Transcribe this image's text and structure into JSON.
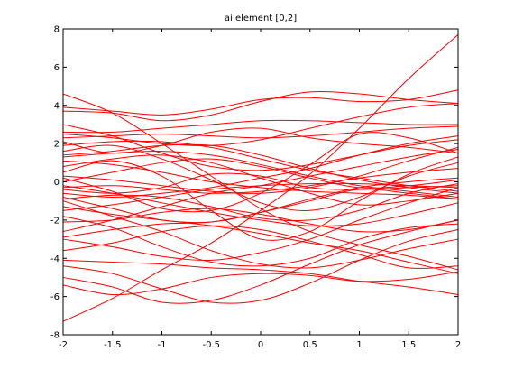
{
  "chart_data": {
    "type": "line",
    "title": "ai element [0,2]",
    "xlabel": "",
    "ylabel": "",
    "xlim": [
      -2,
      2
    ],
    "ylim": [
      -8,
      8
    ],
    "x_ticks": [
      -2,
      -1.5,
      -1,
      -0.5,
      0,
      0.5,
      1,
      1.5,
      2
    ],
    "x_tick_labels": [
      "-2",
      "-1.5",
      "-1",
      "-0.5",
      "0",
      "0.5",
      "1",
      "1.5",
      "2"
    ],
    "y_ticks": [
      -8,
      -6,
      -4,
      -2,
      0,
      2,
      4,
      6,
      8
    ],
    "y_tick_labels": [
      "-8",
      "-6",
      "-4",
      "-2",
      "0",
      "2",
      "4",
      "6",
      "8"
    ],
    "grid": false,
    "line_color": "#ff0000",
    "x": [
      -2,
      -1.5,
      -1,
      -0.5,
      0,
      0.5,
      1,
      1.5,
      2
    ],
    "series": [
      {
        "values": [
          -7.3,
          -6.1,
          -4.6,
          -3.2,
          -1.5,
          0.4,
          2.8,
          5.4,
          7.7
        ]
      },
      {
        "values": [
          4.6,
          3.6,
          2.0,
          0.3,
          -1.4,
          -2.6,
          -3.3,
          -3.9,
          -4.6
        ]
      },
      {
        "values": [
          3.9,
          3.7,
          3.5,
          3.8,
          4.3,
          4.4,
          4.2,
          4.3,
          4.8
        ]
      },
      {
        "values": [
          3.7,
          3.6,
          3.2,
          3.5,
          4.2,
          4.7,
          4.6,
          4.3,
          4.1
        ]
      },
      {
        "values": [
          2.6,
          2.6,
          2.8,
          3.0,
          3.2,
          3.2,
          3.1,
          3.0,
          3.0
        ]
      },
      {
        "values": [
          2.3,
          2.4,
          2.5,
          2.4,
          2.3,
          2.4,
          2.6,
          2.8,
          2.9
        ]
      },
      {
        "values": [
          2.1,
          1.5,
          1.9,
          2.6,
          2.8,
          2.3,
          2.0,
          1.8,
          1.5
        ]
      },
      {
        "values": [
          1.9,
          2.1,
          2.1,
          1.8,
          1.2,
          0.6,
          0.2,
          -0.2,
          -0.5
        ]
      },
      {
        "values": [
          1.4,
          1.6,
          1.9,
          1.9,
          1.4,
          0.7,
          0.1,
          -0.3,
          -0.6
        ]
      },
      {
        "values": [
          1.3,
          1.5,
          1.6,
          1.4,
          0.9,
          0.3,
          -0.2,
          -0.5,
          -0.8
        ]
      },
      {
        "values": [
          1.1,
          0.9,
          0.5,
          0.0,
          -0.3,
          -0.5,
          -0.6,
          -0.7,
          -0.9
        ]
      },
      {
        "values": [
          0.8,
          1.2,
          1.4,
          1.0,
          0.2,
          -0.6,
          -1.2,
          -1.0,
          -0.6
        ]
      },
      {
        "values": [
          0.5,
          1.1,
          0.3,
          -1.5,
          -3.0,
          -2.6,
          -1.0,
          0.4,
          1.3
        ]
      },
      {
        "values": [
          0.2,
          -0.5,
          -1.4,
          -1.5,
          -0.6,
          0.9,
          2.5,
          2.3,
          1.5
        ]
      },
      {
        "values": [
          0.0,
          0.5,
          1.0,
          1.2,
          0.8,
          0.2,
          -0.3,
          -0.2,
          0.1
        ]
      },
      {
        "values": [
          -0.2,
          -0.6,
          -1.1,
          -1.6,
          -2.0,
          -2.3,
          -2.2,
          -1.7,
          -1.1
        ]
      },
      {
        "values": [
          -0.3,
          -0.2,
          -0.4,
          -0.6,
          -0.5,
          -0.2,
          0.2,
          0.5,
          0.7
        ]
      },
      {
        "values": [
          -0.4,
          -0.6,
          -0.3,
          0.4,
          0.3,
          -0.3,
          -0.4,
          -0.3,
          -0.2
        ]
      },
      {
        "values": [
          -0.6,
          -0.8,
          -0.6,
          -0.3,
          0.2,
          0.7,
          1.4,
          2.0,
          2.4
        ]
      },
      {
        "values": [
          -0.8,
          -1.4,
          -2.0,
          -2.1,
          -1.6,
          -0.9,
          -0.3,
          0.0,
          0.2
        ]
      },
      {
        "values": [
          -1.0,
          -1.8,
          -2.6,
          -3.6,
          -4.3,
          -4.5,
          -4.1,
          -3.5,
          -3.0
        ]
      },
      {
        "values": [
          -1.3,
          -1.7,
          -2.0,
          -2.3,
          -2.7,
          -3.2,
          -3.6,
          -4.2,
          -4.8
        ]
      },
      {
        "values": [
          -1.5,
          -1.2,
          -0.8,
          -0.4,
          -0.2,
          -0.1,
          -0.1,
          -0.2,
          -0.3
        ]
      },
      {
        "values": [
          -1.8,
          -2.4,
          -3.4,
          -4.2,
          -4.4,
          -4.0,
          -3.0,
          -2.4,
          -2.2
        ]
      },
      {
        "values": [
          -2.1,
          -2.0,
          -1.6,
          -1.4,
          -1.7,
          -2.2,
          -2.6,
          -2.5,
          -2.0
        ]
      },
      {
        "values": [
          -2.6,
          -2.0,
          -1.3,
          -0.6,
          -0.2,
          0.3,
          0.8,
          1.3,
          1.7
        ]
      },
      {
        "values": [
          -3.0,
          -3.4,
          -3.9,
          -4.1,
          -3.7,
          -3.0,
          -2.0,
          -1.1,
          -0.3
        ]
      },
      {
        "values": [
          -3.6,
          -3.2,
          -2.6,
          -2.3,
          -2.5,
          -3.1,
          -3.8,
          -4.5,
          -4.4
        ]
      },
      {
        "values": [
          -4.1,
          -4.2,
          -4.3,
          -4.5,
          -4.6,
          -4.8,
          -5.2,
          -5.5,
          -5.9
        ]
      },
      {
        "values": [
          -4.4,
          -4.8,
          -5.6,
          -6.3,
          -6.2,
          -5.3,
          -4.1,
          -3.1,
          -2.5
        ]
      },
      {
        "values": [
          -5.0,
          -5.5,
          -6.3,
          -6.2,
          -5.4,
          -4.3,
          -3.3,
          -2.6,
          -2.0
        ]
      },
      {
        "values": [
          -5.4,
          -5.9,
          -5.6,
          -5.0,
          -4.8,
          -4.9,
          -5.2,
          -5.1,
          -4.7
        ]
      },
      {
        "values": [
          1.6,
          1.9,
          1.2,
          0.1,
          -1.1,
          -1.5,
          -0.8,
          0.3,
          1.0
        ]
      },
      {
        "values": [
          2.5,
          2.3,
          2.0,
          1.9,
          2.2,
          2.8,
          3.4,
          3.9,
          4.1
        ]
      },
      {
        "values": [
          0.3,
          0.1,
          -0.2,
          -0.5,
          -0.6,
          -0.3,
          0.3,
          1.1,
          1.8
        ]
      },
      {
        "values": [
          -0.9,
          -0.7,
          -0.8,
          -1.3,
          -1.9,
          -2.0,
          -1.5,
          -0.6,
          -0.1
        ]
      },
      {
        "values": [
          3.0,
          2.4,
          1.5,
          0.8,
          0.6,
          0.9,
          1.4,
          1.9,
          2.2
        ]
      },
      {
        "values": [
          -2.9,
          -2.5,
          -2.2,
          -2.1,
          -1.6,
          -1.0,
          -0.4,
          -0.6,
          -0.9
        ]
      }
    ]
  }
}
